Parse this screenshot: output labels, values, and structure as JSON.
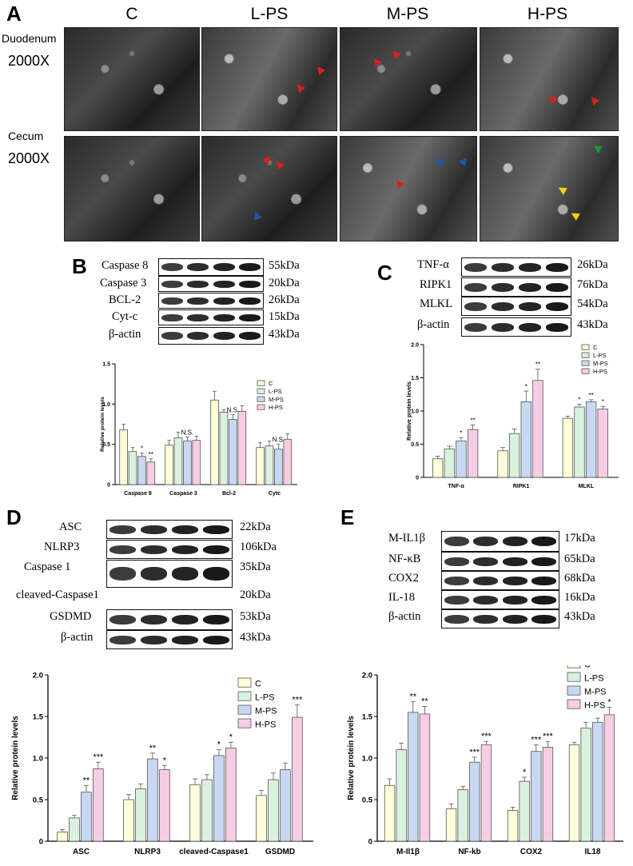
{
  "panelA": {
    "letter": "A",
    "columns": [
      "C",
      "L-PS",
      "M-PS",
      "H-PS"
    ],
    "rows": [
      {
        "tissue": "Duodenum",
        "magnification": "2000X"
      },
      {
        "tissue": "Cecum",
        "magnification": "2000X"
      }
    ],
    "arrow_colors": {
      "red": "#d62020",
      "blue": "#2255aa",
      "green": "#1a9a3a",
      "yellow": "#f2d400"
    }
  },
  "panelB": {
    "letter": "B",
    "blots": [
      {
        "label": "Caspase 8",
        "kda": "55kDa"
      },
      {
        "label": "Caspase 3",
        "kda": "20kDa"
      },
      {
        "label": "BCL-2",
        "kda": "26kDa"
      },
      {
        "label": "Cyt-c",
        "kda": "15kDa"
      },
      {
        "label": "β-actin",
        "kda": "43kDa"
      }
    ],
    "chart_data": {
      "type": "bar",
      "ylabel": "Relative protein levels",
      "ylim": [
        0,
        1.5
      ],
      "yticks": [
        "0",
        "0.5",
        "1.0",
        "1.5"
      ],
      "categories": [
        "Caspase 8",
        "Caspase 3",
        "Bcl-2",
        "Cytc"
      ],
      "series": [
        {
          "name": "C",
          "values": [
            0.68,
            0.49,
            1.05,
            0.46
          ]
        },
        {
          "name": "L-PS",
          "values": [
            0.41,
            0.58,
            0.9,
            0.48
          ]
        },
        {
          "name": "M-PS",
          "values": [
            0.35,
            0.54,
            0.81,
            0.44
          ]
        },
        {
          "name": "H-PS",
          "values": [
            0.28,
            0.55,
            0.91,
            0.56
          ]
        }
      ],
      "errors": [
        [
          0.07,
          0.06,
          0.11,
          0.06
        ],
        [
          0.05,
          0.07,
          0.03,
          0.06
        ],
        [
          0.04,
          0.05,
          0.06,
          0.06
        ],
        [
          0.04,
          0.05,
          0.07,
          0.07
        ]
      ],
      "annotations": [
        {
          "category": 0,
          "series": 2,
          "text": "*"
        },
        {
          "category": 0,
          "series": 3,
          "text": "**"
        },
        {
          "category": 1,
          "series": 2,
          "text": "N.S."
        },
        {
          "category": 2,
          "series": 2,
          "text": "N.S."
        },
        {
          "category": 3,
          "series": 2,
          "text": "N.S."
        }
      ],
      "legend": "top-right"
    }
  },
  "panelC": {
    "letter": "C",
    "blots": [
      {
        "label": "TNF-α",
        "kda": "26kDa"
      },
      {
        "label": "RIPK1",
        "kda": "76kDa"
      },
      {
        "label": "MLKL",
        "kda": "54kDa"
      },
      {
        "label": "β-actin",
        "kda": "43kDa"
      }
    ],
    "chart_data": {
      "type": "bar",
      "ylabel": "Relative protein levels",
      "ylim": [
        0,
        2.0
      ],
      "yticks": [
        "0",
        "0.5",
        "1.0",
        "1.5",
        "2.0"
      ],
      "categories": [
        "TNF-α",
        "RIPK1",
        "MLKL"
      ],
      "series": [
        {
          "name": "C",
          "values": [
            0.28,
            0.4,
            0.89
          ]
        },
        {
          "name": "L-PS",
          "values": [
            0.43,
            0.66,
            1.06
          ]
        },
        {
          "name": "M-PS",
          "values": [
            0.55,
            1.14,
            1.14
          ]
        },
        {
          "name": "H-PS",
          "values": [
            0.72,
            1.46,
            1.03
          ]
        }
      ],
      "errors": [
        [
          0.04,
          0.05,
          0.03
        ],
        [
          0.04,
          0.07,
          0.04
        ],
        [
          0.05,
          0.16,
          0.03
        ],
        [
          0.07,
          0.17,
          0.04
        ]
      ],
      "annotations": [
        {
          "category": 0,
          "series": 2,
          "text": "*"
        },
        {
          "category": 0,
          "series": 3,
          "text": "**"
        },
        {
          "category": 1,
          "series": 2,
          "text": "*"
        },
        {
          "category": 1,
          "series": 3,
          "text": "**"
        },
        {
          "category": 2,
          "series": 1,
          "text": "*"
        },
        {
          "category": 2,
          "series": 2,
          "text": "**"
        },
        {
          "category": 2,
          "series": 3,
          "text": "*"
        }
      ],
      "legend": "top-right"
    }
  },
  "panelD": {
    "letter": "D",
    "blots": [
      {
        "label": "ASC",
        "kda": "22kDa"
      },
      {
        "label": "NLRP3",
        "kda": "106kDa"
      },
      {
        "label": "Caspase 1",
        "kda": "35kDa"
      },
      {
        "label": "cleaved-Caspase1",
        "kda": "20kDa"
      },
      {
        "label": "GSDMD",
        "kda": "53kDa"
      },
      {
        "label": "β-actin",
        "kda": "43kDa"
      }
    ],
    "chart_data": {
      "type": "bar",
      "ylabel": "Relative protein levels",
      "ylim": [
        0,
        2.0
      ],
      "yticks": [
        "0",
        "0.5",
        "1.0",
        "1.5",
        "2.0"
      ],
      "categories": [
        "ASC",
        "NLRP3",
        "cleaved-Caspase1",
        "GSDMD"
      ],
      "series": [
        {
          "name": "C",
          "values": [
            0.11,
            0.5,
            0.68,
            0.55
          ]
        },
        {
          "name": "L-PS",
          "values": [
            0.28,
            0.63,
            0.74,
            0.74
          ]
        },
        {
          "name": "M-PS",
          "values": [
            0.59,
            0.99,
            1.03,
            0.86
          ]
        },
        {
          "name": "H-PS",
          "values": [
            0.87,
            0.86,
            1.12,
            1.49
          ]
        }
      ],
      "errors": [
        [
          0.03,
          0.06,
          0.07,
          0.06
        ],
        [
          0.03,
          0.06,
          0.06,
          0.08
        ],
        [
          0.08,
          0.07,
          0.07,
          0.08
        ],
        [
          0.08,
          0.05,
          0.07,
          0.15
        ]
      ],
      "annotations": [
        {
          "category": 0,
          "series": 2,
          "text": "**"
        },
        {
          "category": 0,
          "series": 3,
          "text": "***"
        },
        {
          "category": 1,
          "series": 2,
          "text": "**"
        },
        {
          "category": 1,
          "series": 3,
          "text": "*"
        },
        {
          "category": 2,
          "series": 2,
          "text": "*"
        },
        {
          "category": 2,
          "series": 3,
          "text": "*"
        },
        {
          "category": 3,
          "series": 3,
          "text": "***"
        }
      ],
      "legend": "top-right"
    }
  },
  "panelE": {
    "letter": "E",
    "blots": [
      {
        "label": "M-IL1β",
        "kda": "17kDa"
      },
      {
        "label": "NF-κB",
        "kda": "65kDa"
      },
      {
        "label": "COX2",
        "kda": "68kDa"
      },
      {
        "label": "IL-18",
        "kda": "16kDa"
      },
      {
        "label": "β-actin",
        "kda": "43kDa"
      }
    ],
    "chart_data": {
      "type": "bar",
      "ylabel": "Relative protein levels",
      "ylim": [
        0,
        2.0
      ],
      "yticks": [
        "0",
        "0.5",
        "1.0",
        "1.5",
        "2.0"
      ],
      "categories": [
        "M-Il1β",
        "NF-kb",
        "COX2",
        "IL18"
      ],
      "series": [
        {
          "name": "C",
          "values": [
            0.67,
            0.39,
            0.37,
            1.16
          ]
        },
        {
          "name": "L-PS",
          "values": [
            1.1,
            0.62,
            0.72,
            1.36
          ]
        },
        {
          "name": "M-PS",
          "values": [
            1.55,
            0.95,
            1.08,
            1.43
          ]
        },
        {
          "name": "H-PS",
          "values": [
            1.53,
            1.16,
            1.13,
            1.52
          ]
        }
      ],
      "errors": [
        [
          0.08,
          0.06,
          0.04,
          0.03
        ],
        [
          0.08,
          0.04,
          0.05,
          0.07
        ],
        [
          0.13,
          0.06,
          0.08,
          0.05
        ],
        [
          0.09,
          0.04,
          0.07,
          0.09
        ]
      ],
      "annotations": [
        {
          "category": 0,
          "series": 2,
          "text": "**"
        },
        {
          "category": 0,
          "series": 3,
          "text": "**"
        },
        {
          "category": 1,
          "series": 2,
          "text": "***"
        },
        {
          "category": 1,
          "series": 3,
          "text": "***"
        },
        {
          "category": 2,
          "series": 1,
          "text": "*"
        },
        {
          "category": 2,
          "series": 2,
          "text": "***"
        },
        {
          "category": 2,
          "series": 3,
          "text": "***"
        },
        {
          "category": 3,
          "series": 3,
          "text": "*"
        }
      ],
      "legend": "top-right"
    }
  },
  "series_colors": [
    "#ffffd9",
    "#d9f2df",
    "#c8d8f2",
    "#f7cde6"
  ]
}
